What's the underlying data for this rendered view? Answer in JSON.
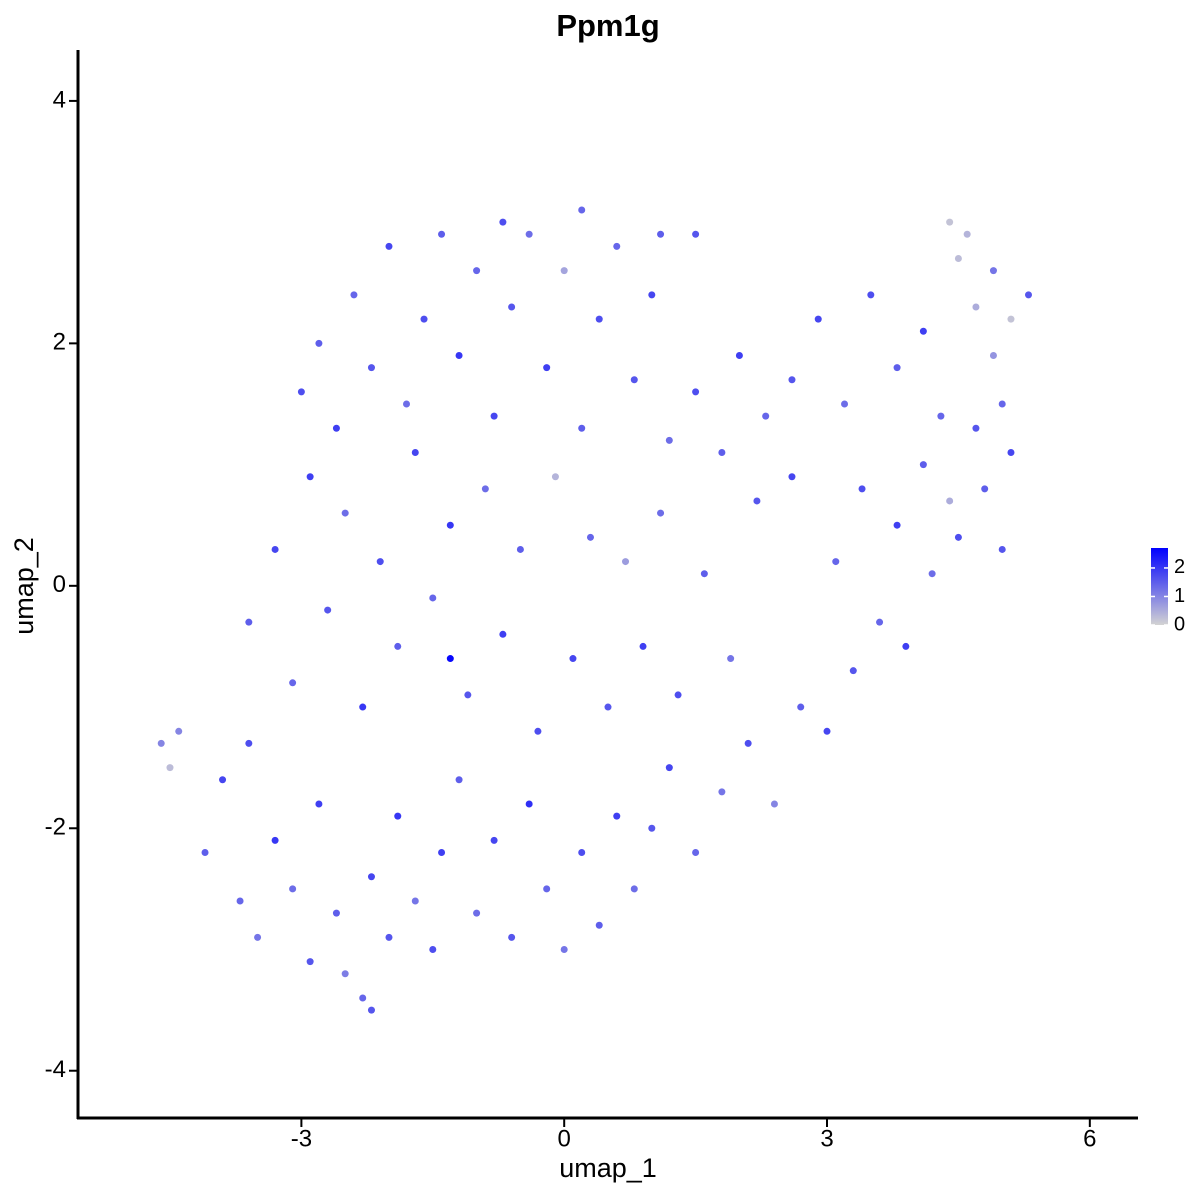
{
  "chart_data": {
    "type": "scatter",
    "title": "Ppm1g",
    "x_label": "umap_1",
    "y_label": "umap_2",
    "xlim": [
      -5.55,
      6.55
    ],
    "ylim": [
      -4.39,
      4.42
    ],
    "xticks": [
      -3,
      0,
      3,
      6
    ],
    "yticks": [
      4,
      2,
      0,
      -2,
      -4
    ],
    "x": [
      -4.4,
      -4.1,
      -3.9,
      -3.7,
      -3.5,
      -3.6,
      -3.3,
      -3.1,
      -2.9,
      -2.8,
      -2.6,
      -2.5,
      -2.3,
      -2.2,
      -2.0,
      -1.9,
      -1.7,
      -1.5,
      -1.4,
      -1.2,
      -1.0,
      -0.8,
      -0.6,
      -0.4,
      -0.2,
      0.0,
      0.2,
      0.4,
      0.6,
      0.8,
      1.0,
      1.2,
      1.5,
      1.8,
      2.1,
      2.4,
      2.7,
      3.0,
      3.3,
      3.6,
      3.9,
      4.2,
      4.5,
      4.8,
      5.1,
      5.0,
      -3.6,
      -3.3,
      -3.1,
      -2.9,
      -2.7,
      -2.5,
      -2.3,
      -2.1,
      -1.9,
      -1.7,
      -1.5,
      -1.3,
      -1.1,
      -0.9,
      -0.7,
      -0.5,
      -0.3,
      -0.1,
      0.1,
      0.3,
      0.5,
      0.7,
      0.9,
      1.1,
      1.3,
      1.6,
      1.9,
      2.2,
      2.6,
      3.1,
      3.4,
      3.8,
      4.1,
      4.4,
      4.7,
      5.0,
      -3.0,
      -2.8,
      -2.6,
      -2.4,
      -2.2,
      -2.0,
      -1.8,
      -1.6,
      -1.4,
      -1.2,
      -1.0,
      -0.8,
      -0.6,
      -0.4,
      -0.2,
      0.0,
      0.2,
      0.4,
      0.6,
      0.8,
      1.0,
      1.2,
      1.5,
      1.8,
      2.0,
      2.3,
      2.6,
      2.9,
      3.2,
      3.5,
      3.8,
      4.1,
      4.3,
      4.5,
      4.7,
      4.9,
      5.1,
      5.3,
      4.6,
      4.4,
      4.9,
      -4.6,
      -4.5,
      -2.2,
      0.2,
      -0.7,
      1.1,
      1.5,
      -1.3
    ],
    "y": [
      -1.2,
      -2.2,
      -1.6,
      -2.6,
      -2.9,
      -1.3,
      -2.1,
      -2.5,
      -3.1,
      -1.8,
      -2.7,
      -3.2,
      -3.4,
      -2.4,
      -2.9,
      -1.9,
      -2.6,
      -3.0,
      -2.2,
      -1.6,
      -2.7,
      -2.1,
      -2.9,
      -1.8,
      -2.5,
      -3.0,
      -2.2,
      -2.8,
      -1.9,
      -2.5,
      -2.0,
      -1.5,
      -2.2,
      -1.7,
      -1.3,
      -1.8,
      -1.0,
      -1.2,
      -0.7,
      -0.3,
      -0.5,
      0.1,
      0.4,
      0.8,
      1.1,
      0.3,
      -0.3,
      0.3,
      -0.8,
      0.9,
      -0.2,
      0.6,
      -1.0,
      0.2,
      -0.5,
      1.1,
      -0.1,
      0.5,
      -0.9,
      0.8,
      -0.4,
      0.3,
      -1.2,
      0.9,
      -0.6,
      0.4,
      -1.0,
      0.2,
      -0.5,
      0.6,
      -0.9,
      0.1,
      -0.6,
      0.7,
      0.9,
      0.2,
      0.8,
      0.5,
      1.0,
      0.7,
      1.3,
      1.5,
      1.6,
      2.0,
      1.3,
      2.4,
      1.8,
      2.8,
      1.5,
      2.2,
      2.9,
      1.9,
      2.6,
      1.4,
      2.3,
      2.9,
      1.8,
      2.6,
      1.3,
      2.2,
      2.8,
      1.7,
      2.4,
      1.2,
      1.6,
      1.1,
      1.9,
      1.4,
      1.7,
      2.2,
      1.5,
      2.4,
      1.8,
      2.1,
      1.4,
      2.7,
      2.3,
      1.9,
      2.2,
      2.4,
      2.9,
      3.0,
      2.6,
      -1.3,
      -1.5,
      -3.5,
      3.1,
      3.0,
      2.9,
      2.9,
      -0.6
    ],
    "values": [
      1.0,
      1.5,
      1.8,
      1.4,
      1.2,
      1.7,
      2.0,
      1.3,
      1.6,
      1.9,
      1.5,
      1.1,
      1.4,
      1.8,
      1.6,
      2.0,
      1.2,
      1.7,
      1.9,
      1.5,
      1.3,
      1.8,
      1.6,
      2.1,
      1.4,
      1.2,
      1.7,
      1.5,
      1.9,
      1.3,
      1.6,
      1.8,
      1.4,
      1.2,
      1.7,
      1.0,
      1.5,
      1.8,
      1.6,
      1.4,
      1.9,
      1.3,
      1.7,
      1.5,
      1.8,
      1.6,
      1.5,
      1.8,
      1.4,
      1.9,
      1.6,
      1.3,
      2.0,
      1.7,
      1.5,
      1.8,
      1.4,
      2.0,
      1.6,
      1.3,
      1.9,
      1.5,
      1.7,
      0.4,
      1.8,
      1.4,
      1.6,
      0.7,
      1.9,
      1.3,
      1.7,
      1.5,
      1.2,
      1.6,
      1.8,
      1.4,
      1.7,
      1.9,
      1.5,
      0.5,
      1.6,
      1.4,
      1.7,
      1.5,
      1.9,
      1.4,
      1.6,
      1.8,
      1.3,
      1.7,
      1.5,
      2.0,
      1.4,
      1.8,
      1.6,
      1.3,
      1.9,
      0.6,
      1.5,
      1.7,
      1.4,
      1.6,
      1.8,
      1.3,
      1.7,
      1.5,
      1.9,
      1.4,
      1.6,
      1.8,
      1.3,
      1.7,
      1.5,
      1.9,
      1.4,
      0.3,
      0.5,
      0.8,
      0.2,
      1.6,
      0.4,
      0.2,
      1.2,
      1.0,
      0.3,
      1.6,
      1.4,
      1.7,
      1.5,
      1.6,
      2.6
    ],
    "colorbar": {
      "colors": [
        "#d3d3d3",
        "#0000ff"
      ],
      "range": [
        0,
        2.7
      ],
      "ticks": [
        0,
        1,
        2
      ]
    }
  }
}
